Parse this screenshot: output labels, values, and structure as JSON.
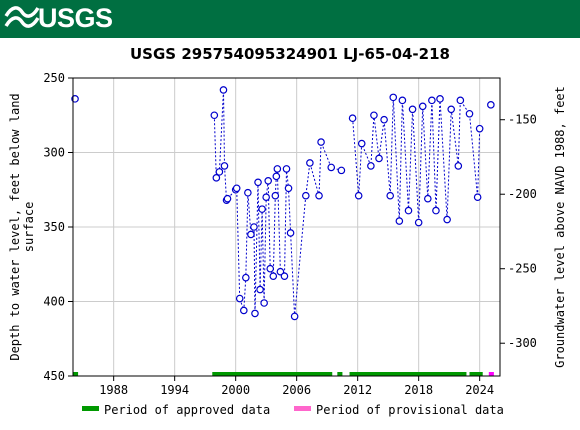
{
  "header": {
    "logo_text": "USGS",
    "banner_color": "#006f41"
  },
  "chart_data": {
    "type": "scatter",
    "title": "USGS 295754095324901 LJ-65-04-218",
    "ylabel_left": [
      "Depth to water level, feet below land",
      "surface"
    ],
    "ylabel_right": "Groundwater level above NAVD 1988, feet",
    "xlim": [
      1984,
      2026
    ],
    "ylim_left": [
      450,
      250
    ],
    "ylim_right": [
      -322,
      -122
    ],
    "x_ticks": [
      1988,
      1994,
      2000,
      2006,
      2012,
      2018,
      2024
    ],
    "y_ticks_left": [
      250,
      300,
      350,
      400,
      450
    ],
    "y_ticks_right": [
      -150,
      -200,
      -250,
      -300
    ],
    "grid": true,
    "point_color": "#0000cc",
    "series": [
      {
        "name": "",
        "connected": false,
        "points": [
          [
            1984.2,
            264
          ]
        ]
      },
      {
        "name": "",
        "connected": true,
        "points": [
          [
            1997.9,
            275
          ],
          [
            1998.1,
            317
          ],
          [
            1998.4,
            313
          ],
          [
            1998.8,
            258
          ],
          [
            1998.9,
            309
          ],
          [
            1999.1,
            332
          ],
          [
            1999.2,
            331
          ],
          [
            2000.0,
            325
          ],
          [
            2000.1,
            324
          ],
          [
            2000.4,
            398
          ],
          [
            2000.8,
            406
          ],
          [
            2001.0,
            384
          ],
          [
            2001.2,
            327
          ],
          [
            2001.5,
            355
          ],
          [
            2001.8,
            350
          ],
          [
            2001.9,
            408
          ],
          [
            2002.2,
            320
          ],
          [
            2002.4,
            392
          ],
          [
            2002.6,
            338
          ],
          [
            2002.8,
            401
          ],
          [
            2003.0,
            330
          ],
          [
            2003.2,
            319
          ],
          [
            2003.4,
            378
          ],
          [
            2003.7,
            383
          ],
          [
            2003.9,
            329
          ],
          [
            2004.0,
            316
          ],
          [
            2004.1,
            311
          ],
          [
            2004.4,
            380
          ],
          [
            2004.8,
            383
          ],
          [
            2005.0,
            311
          ],
          [
            2005.2,
            324
          ],
          [
            2005.4,
            354
          ],
          [
            2005.8,
            410
          ],
          [
            2006.9,
            329
          ],
          [
            2007.3,
            307
          ],
          [
            2008.2,
            329
          ],
          [
            2008.4,
            293
          ],
          [
            2009.4,
            310
          ],
          [
            2010.4,
            312
          ]
        ]
      },
      {
        "name": "",
        "connected": true,
        "points": [
          [
            2011.5,
            277
          ],
          [
            2012.1,
            329
          ],
          [
            2012.4,
            294
          ],
          [
            2013.3,
            309
          ],
          [
            2013.6,
            275
          ],
          [
            2014.1,
            304
          ],
          [
            2014.6,
            278
          ],
          [
            2015.2,
            329
          ],
          [
            2015.5,
            263
          ],
          [
            2016.1,
            346
          ],
          [
            2016.4,
            265
          ],
          [
            2017.0,
            339
          ],
          [
            2017.4,
            271
          ],
          [
            2018.0,
            347
          ],
          [
            2018.4,
            269
          ],
          [
            2018.9,
            331
          ],
          [
            2019.3,
            265
          ],
          [
            2019.7,
            339
          ],
          [
            2020.1,
            264
          ],
          [
            2020.8,
            345
          ],
          [
            2021.2,
            271
          ],
          [
            2021.9,
            309
          ],
          [
            2022.1,
            265
          ],
          [
            2023.0,
            274
          ],
          [
            2023.8,
            330
          ],
          [
            2024.0,
            284
          ]
        ]
      },
      {
        "name": "",
        "connected": false,
        "points": [
          [
            2025.1,
            268
          ]
        ]
      }
    ],
    "periods": [
      {
        "type": "approved",
        "color": "#009900",
        "ranges": [
          [
            1984.0,
            1984.5
          ],
          [
            1997.7,
            2009.5
          ],
          [
            2010.0,
            2010.5
          ],
          [
            2011.2,
            2022.7
          ],
          [
            2023.0,
            2024.3
          ]
        ]
      },
      {
        "type": "provisional",
        "color": "#ff00ff",
        "ranges": [
          [
            2024.9,
            2025.4
          ]
        ]
      }
    ],
    "legend": {
      "placement": "bottom",
      "items": [
        {
          "label": "Period of approved data",
          "color": "#009900"
        },
        {
          "label": "Period of provisional data",
          "color": "#ff00ff"
        }
      ]
    }
  }
}
